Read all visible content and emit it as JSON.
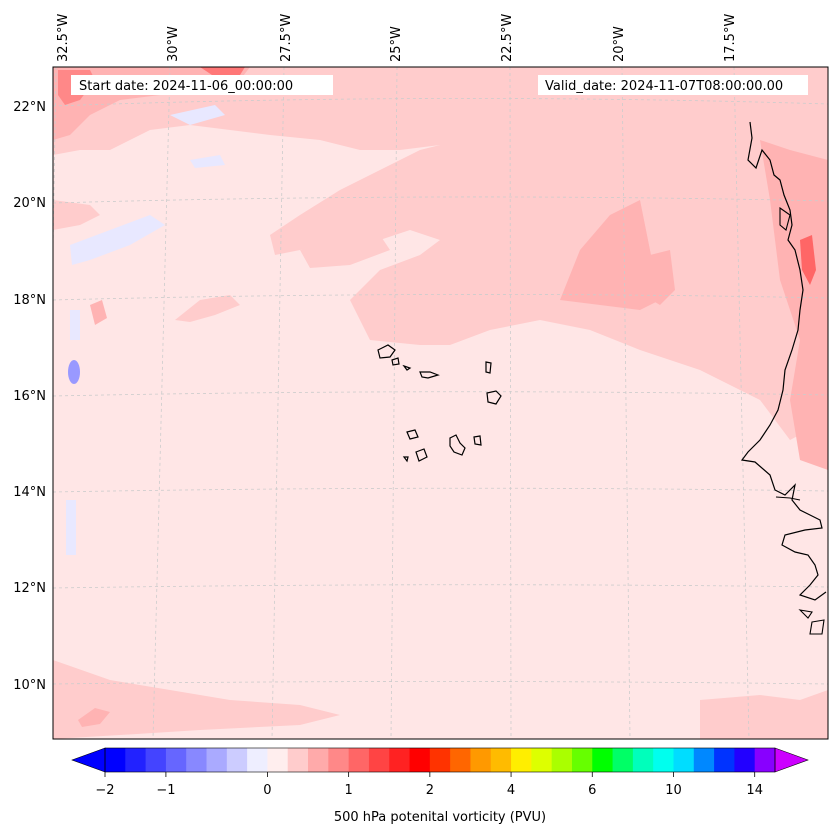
{
  "header": {
    "start_date": "Start date: 2024-11-06_00:00:00",
    "valid_date": "Valid_date: 2024-11-07T08:00:00.00"
  },
  "map": {
    "lon_labels": [
      "32.5°W",
      "30°W",
      "27.5°W",
      "25°W",
      "22.5°W",
      "20°W",
      "17.5°W"
    ],
    "lat_labels": [
      "22°N",
      "20°N",
      "18°N",
      "16°N",
      "14°N",
      "12°N",
      "10°N"
    ],
    "gridlines": true,
    "colors": {
      "background_field": "#ffe6e6",
      "light_pink": "#ffcccc",
      "medium_pink": "#ffb3b3",
      "red_core": "#ff6666",
      "faint_blue": "#e8e8ff",
      "blue_spot": "#9999ff",
      "coastline": "#000000",
      "gridline": "#bbbbbb"
    }
  },
  "colorbar": {
    "label": "500 hPa potenital vorticity (PVU)",
    "ticks": [
      "−2",
      "−1",
      "0",
      "1",
      "2",
      "4",
      "6",
      "10",
      "14"
    ],
    "colors": [
      "#0000ff",
      "#2222ff",
      "#4444ff",
      "#6666ff",
      "#8888ff",
      "#aaaaff",
      "#ccccff",
      "#eeeeff",
      "#ffeeee",
      "#ffcccc",
      "#ffaaaa",
      "#ff8888",
      "#ff6666",
      "#ff4444",
      "#ff2222",
      "#ff0000",
      "#ff3300",
      "#ff6600",
      "#ff9900",
      "#ffbb00",
      "#ffee00",
      "#ddff00",
      "#aaff00",
      "#66ff00",
      "#00ff00",
      "#00ff66",
      "#00ffbb",
      "#00ffee",
      "#00ddff",
      "#0088ff",
      "#0033ff",
      "#2200ff",
      "#8800ff"
    ],
    "under_color": "#0000ff",
    "over_color": "#cc00ff"
  }
}
